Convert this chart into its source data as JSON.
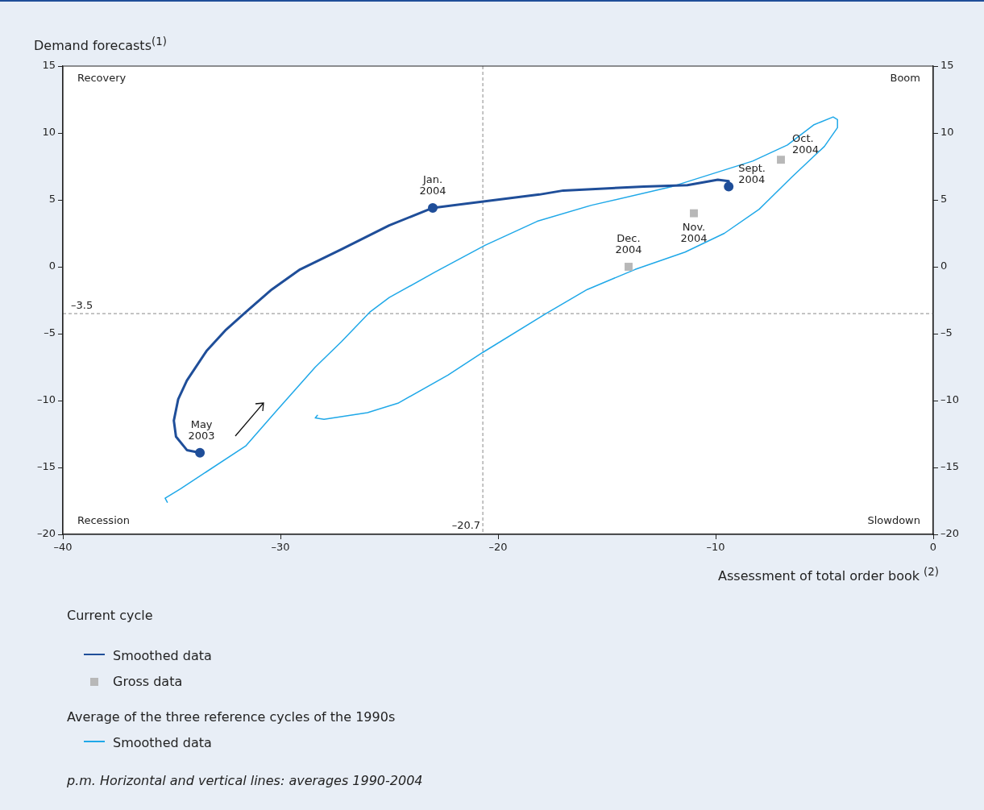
{
  "chart_data": {
    "type": "line",
    "xlabel": "Assessment of total order book $^{(2)}$",
    "ylabel": "Demand forecasts$^{(1)}$",
    "xlim": [
      -40,
      0
    ],
    "xticks": [
      {
        "value": -40,
        "label": "–40"
      },
      {
        "value": -30,
        "label": "–30"
      },
      {
        "value": -20,
        "label": "–20"
      },
      {
        "value": -10,
        "label": "–10"
      },
      0
    ],
    "ylim": [
      -20,
      15
    ],
    "yticks": [
      {
        "value": -20,
        "label": "–20"
      },
      {
        "value": -15,
        "label": "–15"
      },
      {
        "value": -10,
        "label": "–10"
      },
      {
        "value": -5,
        "label": "–5"
      },
      0,
      5,
      10,
      15
    ],
    "y2lim": [
      -20,
      15
    ],
    "y2ticks": [
      {
        "value": -20,
        "label": "–20"
      },
      {
        "value": -15,
        "label": "–15"
      },
      {
        "value": -10,
        "label": "–10"
      },
      {
        "value": -5,
        "label": "–5"
      },
      0,
      5,
      10,
      15
    ],
    "grid": false,
    "legend": "bottom",
    "series": [
      {
        "name": "Smoothed data",
        "type": "line",
        "color": "#1f4e99",
        "x": [
          -33.7,
          -34.3,
          -34.8,
          -34.9,
          -34.7,
          -34.3,
          -33.4,
          -32.5,
          -31.6,
          -30.4,
          -29.1,
          -27.2,
          -25.0,
          -23.0,
          -20.6,
          -18.1,
          -17.0,
          -13.3,
          -11.3,
          -9.9,
          -9.4,
          -9.4
        ],
        "values": [
          -13.9,
          -13.7,
          -12.7,
          -11.5,
          -9.9,
          -8.5,
          -6.3,
          -4.7,
          -3.4,
          -1.7,
          -0.2,
          1.3,
          3.1,
          4.4,
          4.9,
          5.4,
          5.7,
          6.0,
          6.1,
          6.5,
          6.4,
          6.0
        ]
      },
      {
        "name": "Gross data",
        "type": "scatter",
        "marker": "square",
        "color": "#b8b8b8",
        "x": [
          -7,
          -11,
          -14
        ],
        "values": [
          8,
          4,
          0
        ]
      },
      {
        "name": "Smoothed data",
        "type": "line",
        "marker": "none",
        "color": "#1fa8e8",
        "x": [
          -35.2,
          -35.3,
          -34.6,
          -31.6,
          -30.2,
          -28.4,
          -27.2,
          -25.9,
          -25.0,
          -22.9,
          -20.6,
          -18.2,
          -15.7,
          -12.0,
          -8.3,
          -6.7,
          -5.5,
          -4.6,
          -4.4,
          -4.4,
          -5.0,
          -6.5,
          -8.0,
          -9.6,
          -11.4,
          -13.7,
          -15.9,
          -17.8,
          -20.7,
          -22.3,
          -24.6,
          -26.0,
          -28.0,
          -28.4,
          -28.3
        ],
        "values": [
          -17.6,
          -17.3,
          -16.6,
          -13.4,
          -10.8,
          -7.5,
          -5.6,
          -3.4,
          -2.3,
          -0.4,
          1.6,
          3.4,
          4.6,
          6.0,
          7.9,
          9.1,
          10.6,
          11.2,
          11.0,
          10.4,
          9.0,
          6.7,
          4.3,
          2.5,
          1.1,
          -0.2,
          -1.7,
          -3.5,
          -6.4,
          -8.1,
          -10.2,
          -10.9,
          -11.4,
          -11.3,
          -11.1
        ]
      }
    ],
    "ref_lines": [
      {
        "axis": "y",
        "value": -3.5,
        "label": "–3.5",
        "color": "#888888",
        "line_style": "dashed"
      },
      {
        "axis": "x",
        "value": -20.7,
        "label": "–20.7",
        "color": "#888888",
        "line_style": "dashed"
      }
    ],
    "annotations": [
      "Recovery",
      "Boom",
      "Recession",
      "Slowdown",
      "Current cycle",
      "Average of the three reference cycles of the 1990s",
      "p.m. Horizontal and vertical lines: averages 1990-2004",
      {
        "text": "May\n2003",
        "x": -33.7,
        "y": -13.9
      },
      {
        "text": "Jan.\n2004",
        "x": -23.0,
        "y": 4.4
      },
      {
        "text": "Sept.\n2004",
        "x": -9.4,
        "y": 6.0
      },
      {
        "text": "Oct.\n2004",
        "x": -7,
        "y": 8
      },
      {
        "text": "Nov.\n2004",
        "x": -11,
        "y": 4
      },
      {
        "text": "Dec.\n2004",
        "x": -14,
        "y": 0
      }
    ]
  }
}
